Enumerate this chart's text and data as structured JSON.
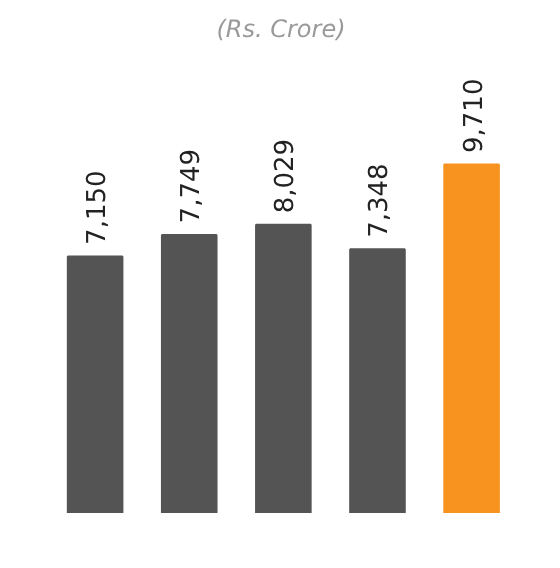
{
  "chart_data": {
    "type": "bar",
    "title": "(Rs. Crore)",
    "categories": [
      null,
      null,
      null,
      null,
      null
    ],
    "values": [
      7150,
      7749,
      8029,
      7348,
      9710
    ],
    "value_labels": [
      "7,150",
      "7,749",
      "8,029",
      "7,348",
      "9,710"
    ],
    "colors": [
      "#545454",
      "#545454",
      "#545454",
      "#545454",
      "#f7931e"
    ],
    "tick_labels": false
  }
}
